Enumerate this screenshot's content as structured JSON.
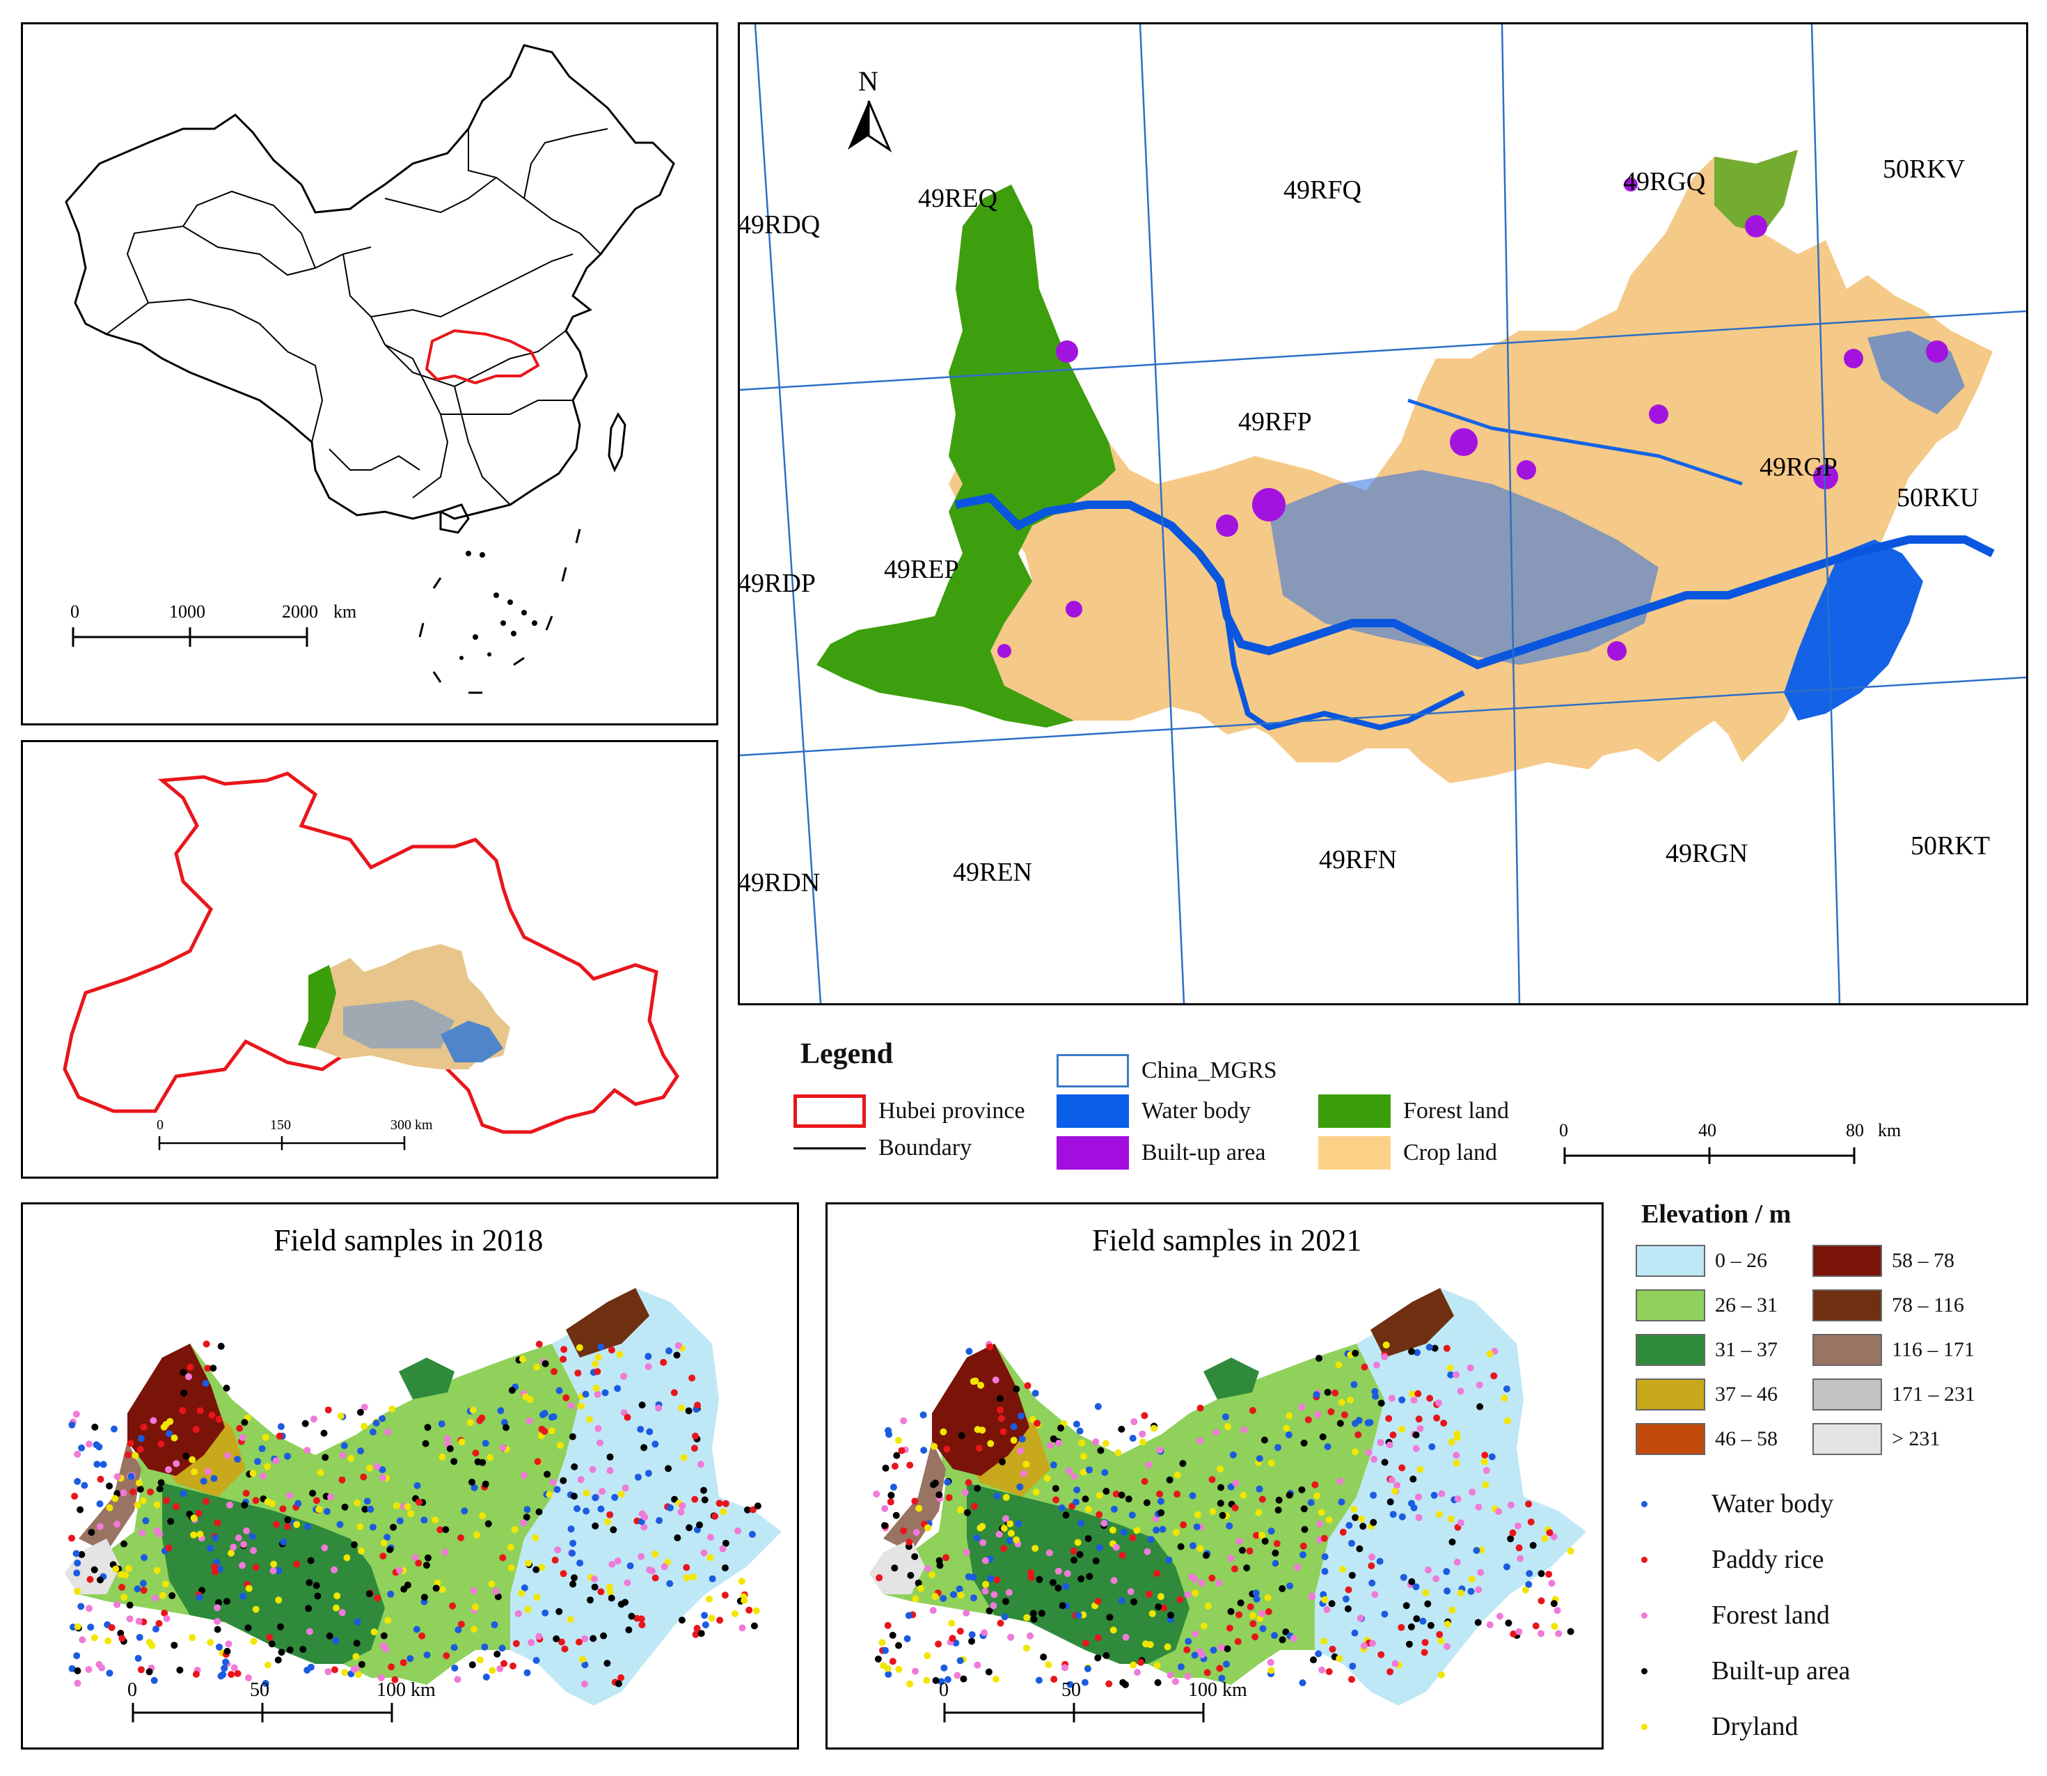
{
  "china_map": {
    "scale": {
      "ticks": [
        "0",
        "1000",
        "2000"
      ],
      "unit": "km"
    }
  },
  "hubei_map": {
    "scale": {
      "ticks": [
        "0",
        "150",
        "300 km"
      ]
    }
  },
  "mgrs_map": {
    "north_label": "N",
    "tiles": [
      "49RDQ",
      "49REQ",
      "49RFQ",
      "49RGQ",
      "50RKV",
      "49RFP",
      "49RGP",
      "50RKU",
      "49RDP",
      "49REP",
      "49RDN",
      "49REN",
      "49RFN",
      "49RGN",
      "50RKT"
    ],
    "scale": {
      "ticks": [
        "0",
        "40",
        "80"
      ],
      "unit": "km"
    }
  },
  "legend": {
    "title": "Legend",
    "items": [
      {
        "label": "Hubei province",
        "color": "#e8161b"
      },
      {
        "label": "Boundary",
        "color": "#000000"
      },
      {
        "label": "China_MGRS",
        "color": "#3a7ac8"
      },
      {
        "label": "Water body",
        "color": "#0a5ee8"
      },
      {
        "label": "Built-up area",
        "color": "#a20ee0"
      },
      {
        "label": "Forest land",
        "color": "#3a9e0a"
      },
      {
        "label": "Crop land",
        "color": "#fbd188"
      }
    ]
  },
  "samples_2018": {
    "title": "Field samples in 2018",
    "scale": {
      "ticks": [
        "0",
        "50",
        "100 km"
      ]
    }
  },
  "samples_2021": {
    "title": "Field samples in 2021",
    "scale": {
      "ticks": [
        "0",
        "50",
        "100 km"
      ]
    }
  },
  "elevation_legend": {
    "title": "Elevation / m",
    "classes": [
      {
        "label": "0 – 26",
        "color": "#bfe8f6"
      },
      {
        "label": "26 – 31",
        "color": "#8fd15a"
      },
      {
        "label": "31 – 37",
        "color": "#2f8a3c"
      },
      {
        "label": "37 – 46",
        "color": "#c8a81c"
      },
      {
        "label": "46 – 58",
        "color": "#c44a0c"
      },
      {
        "label": "58 – 78",
        "color": "#7a1308"
      },
      {
        "label": "78 – 116",
        "color": "#6e3010"
      },
      {
        "label": "116 – 171",
        "color": "#9a7462"
      },
      {
        "label": "171 – 231",
        "color": "#c2c2c2"
      },
      {
        "label": "> 231",
        "color": "#e4e4e4"
      }
    ]
  },
  "sample_legend": {
    "items": [
      {
        "label": "Water body",
        "color": "#1a5be0"
      },
      {
        "label": "Paddy rice",
        "color": "#e8161b"
      },
      {
        "label": "Forest land",
        "color": "#f07ad8"
      },
      {
        "label": "Built-up area",
        "color": "#000000"
      },
      {
        "label": "Dryland",
        "color": "#f2e600"
      }
    ]
  }
}
